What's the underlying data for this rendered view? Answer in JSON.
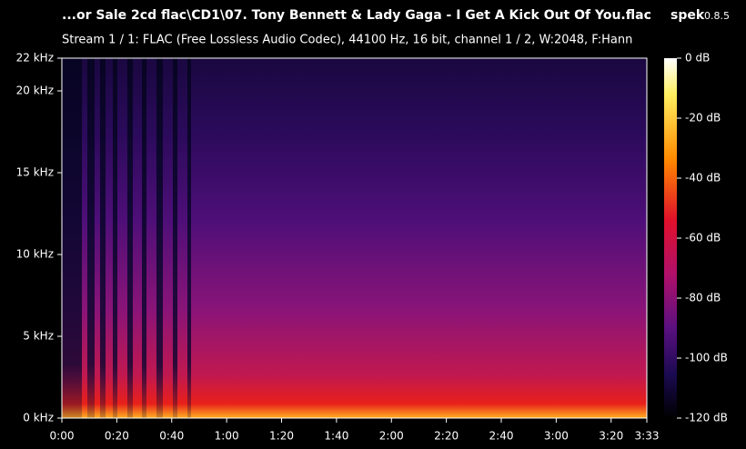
{
  "chart_data": {
    "type": "spectrogram",
    "title": "...or Sale 2cd flac\\CD1\\07. Tony Bennett & Lady Gaga - I Get A Kick Out Of You.flac",
    "app_name": "spek",
    "app_version": "0.8.5",
    "subtitle": "Stream 1 / 1: FLAC (Free Lossless Audio Codec), 44100 Hz, 16 bit, channel 1 / 2, W:2048, F:Hann",
    "xlim": [
      0,
      213
    ],
    "xticks": [
      {
        "value": 0,
        "label": "0:00"
      },
      {
        "value": 20,
        "label": "0:20"
      },
      {
        "value": 40,
        "label": "0:40"
      },
      {
        "value": 60,
        "label": "1:00"
      },
      {
        "value": 80,
        "label": "1:20"
      },
      {
        "value": 100,
        "label": "1:40"
      },
      {
        "value": 120,
        "label": "2:00"
      },
      {
        "value": 140,
        "label": "2:20"
      },
      {
        "value": 160,
        "label": "2:40"
      },
      {
        "value": 180,
        "label": "3:00"
      },
      {
        "value": 200,
        "label": "3:20"
      },
      {
        "value": 213,
        "label": "3:33"
      }
    ],
    "ylim": [
      0,
      22
    ],
    "yticks": [
      {
        "value": 0,
        "label": "0 kHz"
      },
      {
        "value": 5,
        "label": "5 kHz"
      },
      {
        "value": 10,
        "label": "10 kHz"
      },
      {
        "value": 15,
        "label": "15 kHz"
      },
      {
        "value": 20,
        "label": "20 kHz"
      },
      {
        "value": 22,
        "label": "22 kHz"
      }
    ],
    "colorbar": {
      "lim": [
        -120,
        0
      ],
      "ticks": [
        {
          "value": 0,
          "label": "0 dB"
        },
        {
          "value": -20,
          "label": "-20 dB"
        },
        {
          "value": -40,
          "label": "-40 dB"
        },
        {
          "value": -60,
          "label": "-60 dB"
        },
        {
          "value": -80,
          "label": "-80 dB"
        },
        {
          "value": -100,
          "label": "-100 dB"
        },
        {
          "value": -120,
          "label": "-120 dB"
        }
      ]
    }
  }
}
